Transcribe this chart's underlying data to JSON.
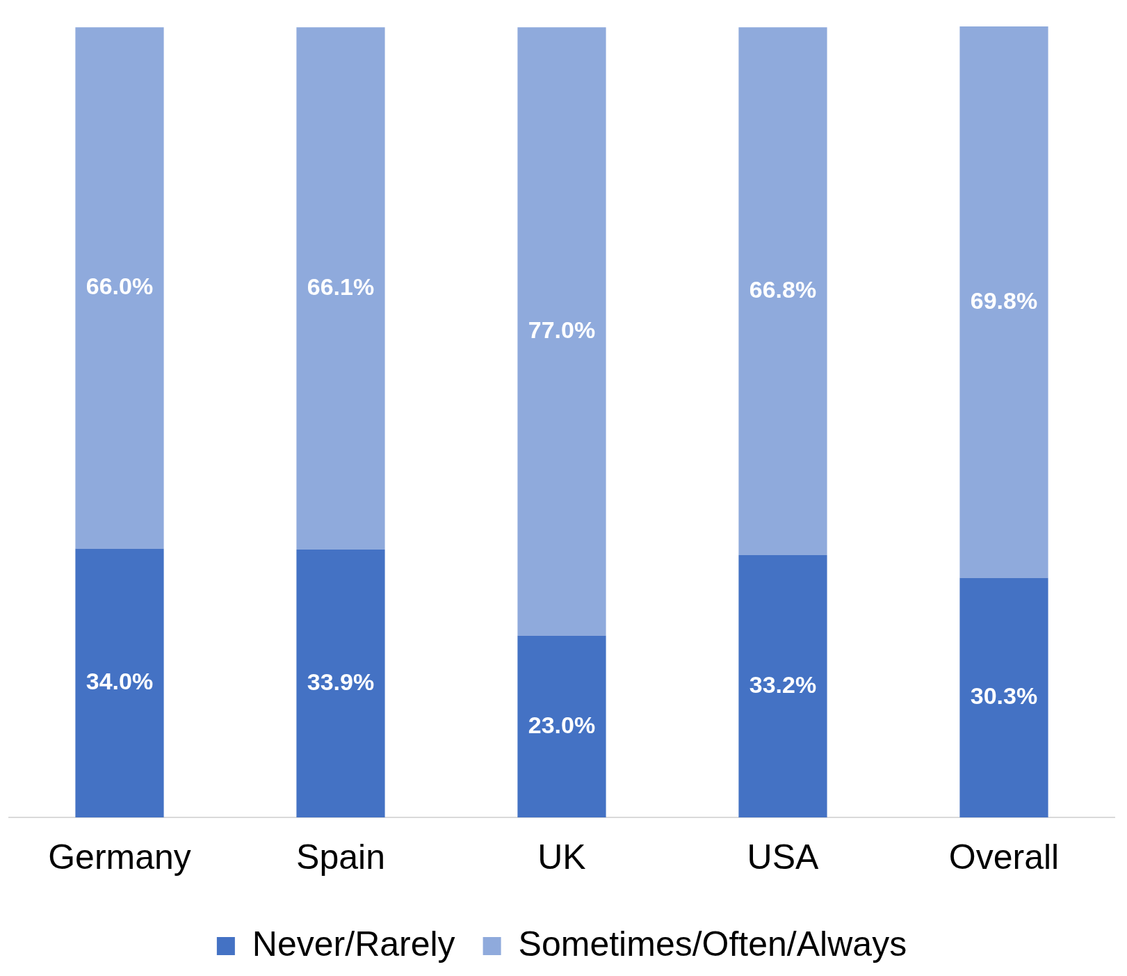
{
  "chart_data": {
    "type": "bar",
    "stacked": true,
    "categories": [
      "Germany",
      "Spain",
      "UK",
      "USA",
      "Overall"
    ],
    "series": [
      {
        "name": "Never/Rarely",
        "color": "#4472c4",
        "values": [
          34.0,
          33.9,
          23.0,
          33.2,
          30.3
        ],
        "value_labels": [
          "34.0%",
          "33.9%",
          "23.0%",
          "33.2%",
          "30.3%"
        ]
      },
      {
        "name": "Sometimes/Often/Always",
        "color": "#8faadc",
        "values": [
          66.0,
          66.1,
          77.0,
          66.8,
          69.8
        ],
        "value_labels": [
          "66.0%",
          "66.1%",
          "77.0%",
          "66.8%",
          "69.8%"
        ]
      }
    ],
    "grid": false,
    "legend": "bottom",
    "tick_labels": "x"
  }
}
